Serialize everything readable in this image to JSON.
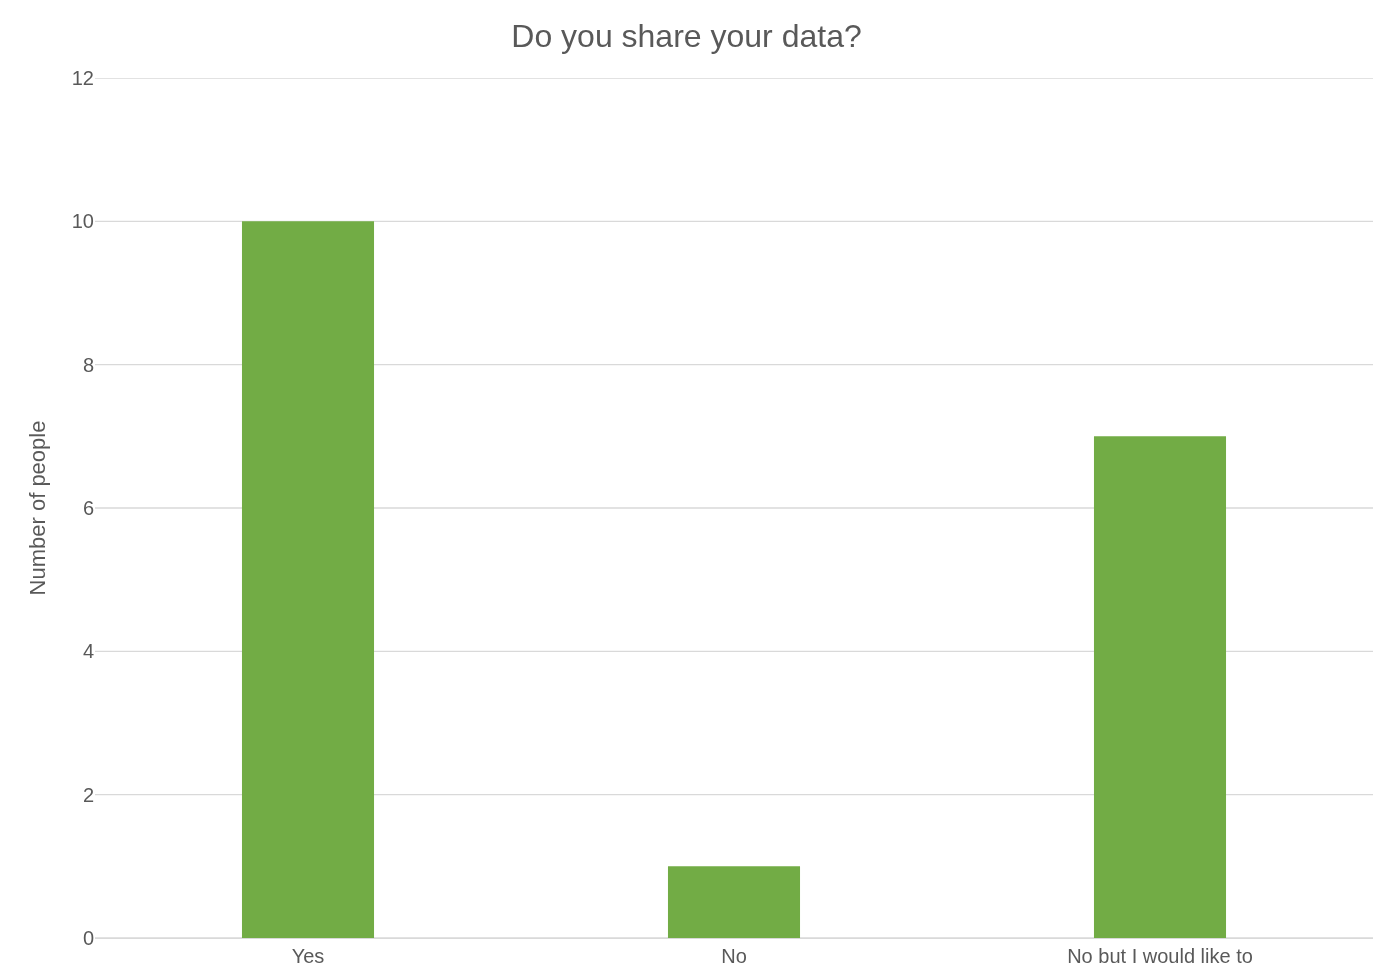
{
  "chart_data": {
    "type": "bar",
    "title": "Do you share your data?",
    "ylabel": "Number of people",
    "categories": [
      "Yes",
      "No",
      "No but I would like to"
    ],
    "values": [
      10,
      1,
      7
    ],
    "color": "#72ac45",
    "ylim": [
      0,
      12
    ],
    "yticks": [
      0,
      2,
      4,
      6,
      8,
      10,
      12
    ],
    "grid": "y"
  }
}
